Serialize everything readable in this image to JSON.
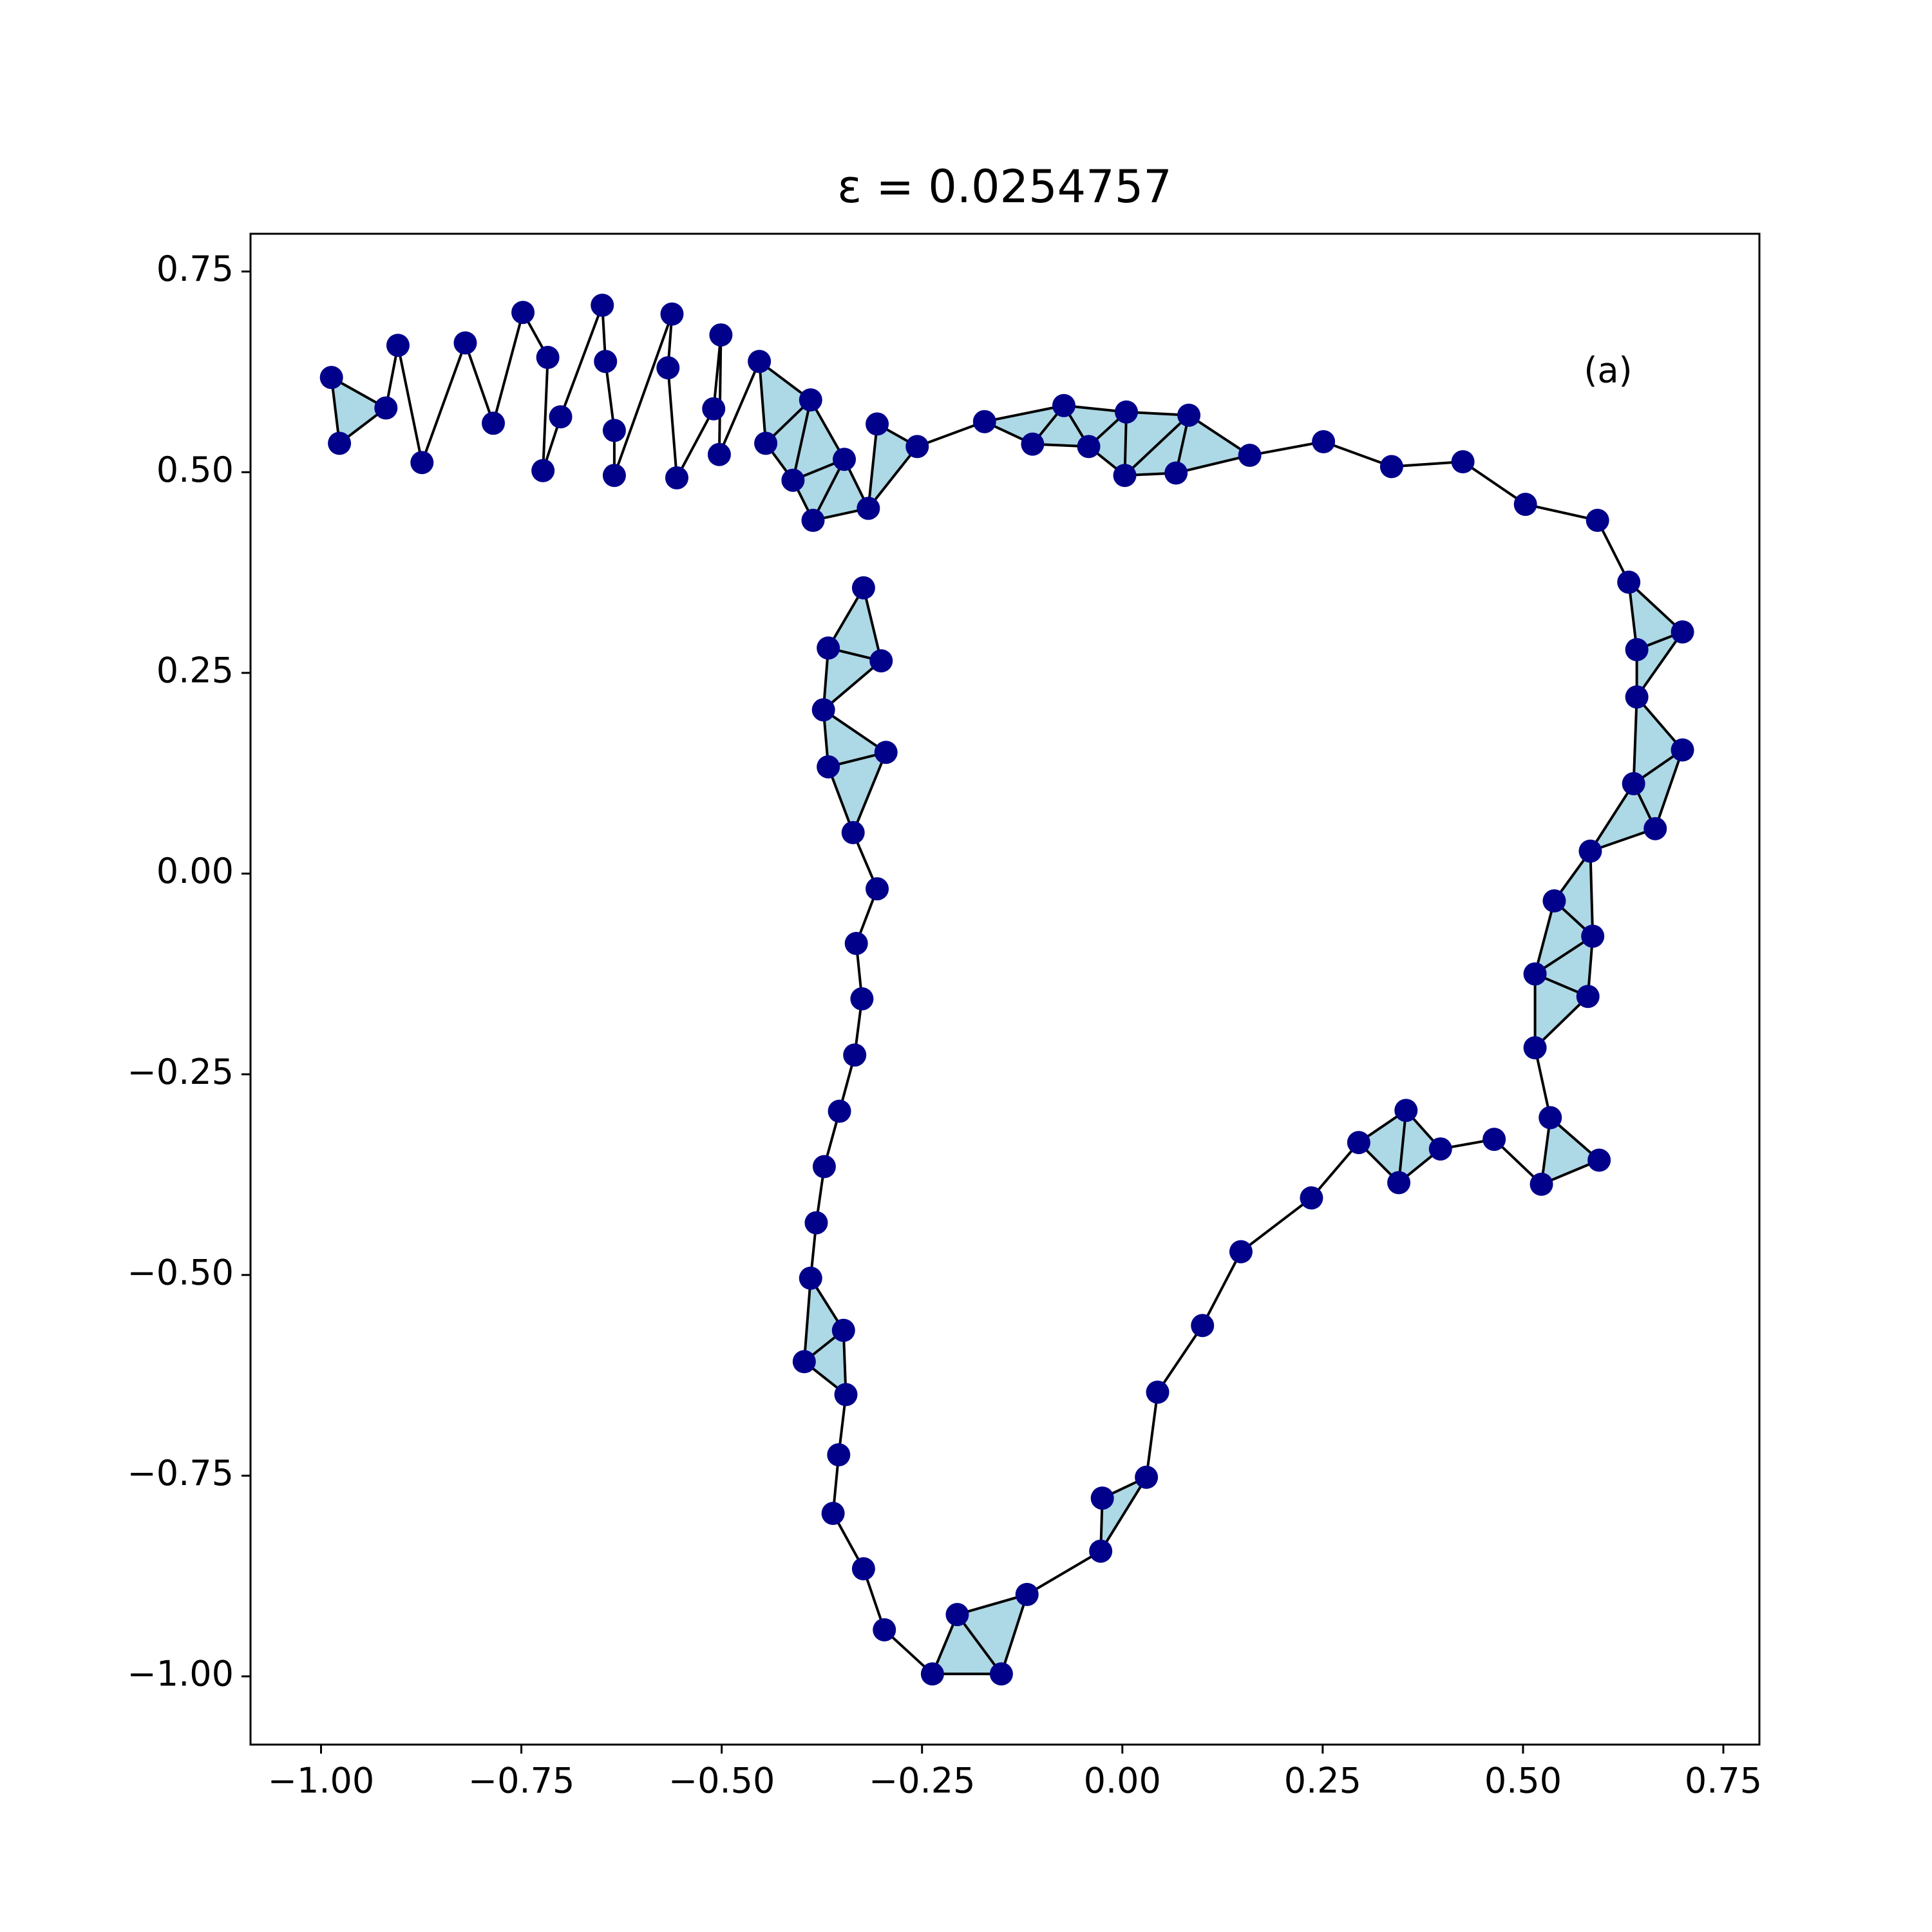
{
  "chart_data": {
    "type": "scatter",
    "title": "ε = 0.0254757",
    "annotation": "(a)",
    "xlim": [
      -1.088,
      0.795
    ],
    "ylim": [
      -1.085,
      0.797
    ],
    "xticks": [
      {
        "value": -1,
        "label": "−1.00"
      },
      {
        "value": -0.75,
        "label": "−0.75"
      },
      {
        "value": -0.5,
        "label": "−0.50"
      },
      {
        "value": -0.25,
        "label": "−0.25"
      },
      {
        "value": 0,
        "label": "0.00"
      },
      0.25,
      {
        "value": 0.5,
        "label": "0.50"
      },
      0.75
    ],
    "yticks": [
      {
        "value": -1,
        "label": "−1.00"
      },
      {
        "value": -0.75,
        "label": "−0.75"
      },
      {
        "value": -0.5,
        "label": "−0.50"
      },
      {
        "value": -0.25,
        "label": "−0.25"
      },
      {
        "value": 0,
        "label": "0.00"
      },
      0.25,
      {
        "value": 0.5,
        "label": "0.50"
      },
      0.75
    ],
    "grid": false,
    "series": [
      {
        "color": "#00008b",
        "fill": "#add8e6",
        "x": [
          -0.987,
          -0.977,
          -0.919,
          -0.904,
          -0.874,
          -0.82,
          -0.785,
          -0.748,
          -0.717,
          -0.723,
          -0.701,
          -0.649,
          -0.645,
          -0.634,
          -0.634,
          -0.562,
          -0.567,
          -0.556,
          -0.51,
          -0.501,
          -0.503,
          -0.453,
          -0.445,
          -0.389,
          -0.411,
          -0.347,
          -0.386,
          -0.317,
          -0.306,
          -0.256,
          -0.172,
          -0.112,
          -0.073,
          -0.042,
          0.005,
          0.003,
          0.083,
          0.067,
          0.159,
          0.251,
          0.336,
          0.425,
          0.503,
          0.593,
          0.632,
          0.642,
          0.699,
          0.642,
          0.699,
          0.638,
          0.665,
          0.584,
          0.539,
          0.587,
          0.515,
          0.581,
          0.515,
          0.534,
          0.595,
          0.523,
          0.464,
          0.397,
          0.354,
          0.345,
          0.295,
          0.236,
          0.148,
          0.1,
          0.044,
          0.03,
          -0.025,
          -0.027,
          -0.119,
          -0.206,
          -0.151,
          -0.237,
          -0.297,
          -0.323,
          -0.361,
          -0.354,
          -0.345,
          -0.397,
          -0.348,
          -0.389,
          -0.382,
          -0.372,
          -0.353,
          -0.334,
          -0.325,
          -0.332,
          -0.306,
          -0.336,
          -0.295,
          -0.367,
          -0.373,
          -0.301,
          -0.367,
          -0.323
        ],
        "values": [
          0.618,
          0.536,
          0.58,
          0.658,
          0.512,
          0.661,
          0.561,
          0.699,
          0.643,
          0.502,
          0.569,
          0.708,
          0.638,
          0.552,
          0.496,
          0.697,
          0.63,
          0.493,
          0.579,
          0.671,
          0.522,
          0.638,
          0.536,
          0.59,
          0.49,
          0.516,
          0.44,
          0.455,
          0.56,
          0.532,
          0.563,
          0.535,
          0.583,
          0.532,
          0.575,
          0.496,
          0.571,
          0.499,
          0.521,
          0.538,
          0.507,
          0.513,
          0.46,
          0.44,
          0.363,
          0.279,
          0.301,
          0.22,
          0.154,
          0.112,
          0.056,
          0.028,
          -0.034,
          -0.078,
          -0.125,
          -0.153,
          -0.217,
          -0.304,
          -0.357,
          -0.387,
          -0.331,
          -0.343,
          -0.295,
          -0.385,
          -0.335,
          -0.404,
          -0.471,
          -0.563,
          -0.646,
          -0.752,
          -0.778,
          -0.844,
          -0.898,
          -0.923,
          -0.997,
          -0.997,
          -0.942,
          -0.866,
          -0.797,
          -0.724,
          -0.649,
          -0.608,
          -0.569,
          -0.504,
          -0.435,
          -0.365,
          -0.296,
          -0.226,
          -0.156,
          -0.087,
          -0.019,
          0.051,
          0.151,
          0.133,
          0.204,
          0.265,
          0.281,
          0.356
        ]
      }
    ]
  }
}
